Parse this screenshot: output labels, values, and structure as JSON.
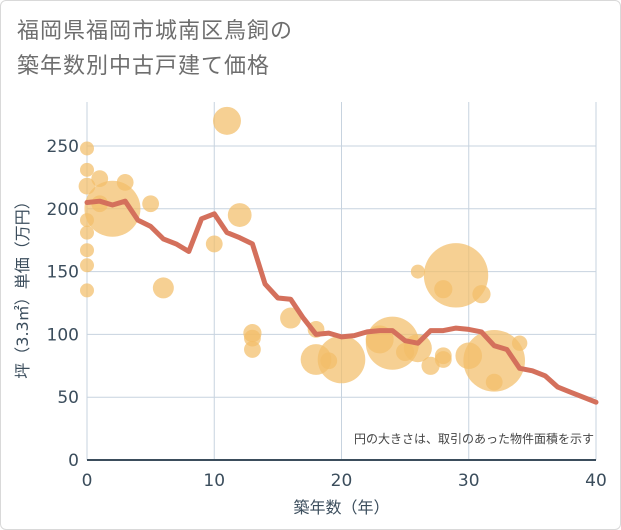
{
  "title_line1": "福岡県福岡市城南区鳥飼の",
  "title_line2": "築年数別中古戸建て価格",
  "chart_data": {
    "type": "scatter",
    "title": "福岡県福岡市城南区鳥飼の築年数別中古戸建て価格",
    "xlabel": "築年数（年）",
    "ylabel": "坪（3.3㎡）単価（万円）",
    "xlim": [
      0,
      40
    ],
    "ylim": [
      0,
      285
    ],
    "xticks": [
      0,
      10,
      20,
      30,
      40
    ],
    "yticks": [
      0,
      50,
      100,
      150,
      200,
      250
    ],
    "grid": true,
    "note": "円の大きさは、取引のあった物件面積を示す",
    "colors": {
      "bubble": "#f3be69",
      "line": "#d4705c",
      "grid": "#c7d3df"
    },
    "bubbles": [
      {
        "x": 0,
        "y": 248,
        "s": 1
      },
      {
        "x": 0,
        "y": 231,
        "s": 1
      },
      {
        "x": 0,
        "y": 218,
        "s": 1.2
      },
      {
        "x": 0,
        "y": 191,
        "s": 1
      },
      {
        "x": 0,
        "y": 181,
        "s": 1
      },
      {
        "x": 0,
        "y": 167,
        "s": 1
      },
      {
        "x": 0,
        "y": 155,
        "s": 1
      },
      {
        "x": 0,
        "y": 135,
        "s": 1
      },
      {
        "x": 1,
        "y": 224,
        "s": 1.2
      },
      {
        "x": 1,
        "y": 204,
        "s": 1.2
      },
      {
        "x": 2,
        "y": 200,
        "s": 4
      },
      {
        "x": 3,
        "y": 221,
        "s": 1.2
      },
      {
        "x": 5,
        "y": 204,
        "s": 1.2
      },
      {
        "x": 6,
        "y": 137,
        "s": 1.5
      },
      {
        "x": 10,
        "y": 172,
        "s": 1.2
      },
      {
        "x": 11,
        "y": 270,
        "s": 2
      },
      {
        "x": 12,
        "y": 195,
        "s": 1.7
      },
      {
        "x": 13,
        "y": 101,
        "s": 1.3
      },
      {
        "x": 13,
        "y": 97,
        "s": 1.2
      },
      {
        "x": 13,
        "y": 88,
        "s": 1.2
      },
      {
        "x": 16,
        "y": 113,
        "s": 1.5
      },
      {
        "x": 18,
        "y": 104,
        "s": 1.2
      },
      {
        "x": 18,
        "y": 80,
        "s": 2.2
      },
      {
        "x": 19,
        "y": 79,
        "s": 1.2
      },
      {
        "x": 20,
        "y": 80,
        "s": 3.4
      },
      {
        "x": 23,
        "y": 96,
        "s": 2
      },
      {
        "x": 24,
        "y": 93,
        "s": 3.8
      },
      {
        "x": 25,
        "y": 86,
        "s": 1.3
      },
      {
        "x": 26,
        "y": 150,
        "s": 1
      },
      {
        "x": 26,
        "y": 89,
        "s": 2
      },
      {
        "x": 27,
        "y": 75,
        "s": 1.3
      },
      {
        "x": 28,
        "y": 136,
        "s": 1.3
      },
      {
        "x": 28,
        "y": 83,
        "s": 1.2
      },
      {
        "x": 28,
        "y": 80,
        "s": 1.2
      },
      {
        "x": 29,
        "y": 147,
        "s": 4.6
      },
      {
        "x": 30,
        "y": 83,
        "s": 1.9
      },
      {
        "x": 31,
        "y": 132,
        "s": 1.3
      },
      {
        "x": 32,
        "y": 79,
        "s": 4.4
      },
      {
        "x": 32,
        "y": 62,
        "s": 1.2
      },
      {
        "x": 34,
        "y": 93,
        "s": 1.1
      }
    ],
    "line": {
      "x": [
        0,
        1,
        2,
        3,
        4,
        5,
        6,
        7,
        8,
        9,
        10,
        11,
        12,
        13,
        14,
        15,
        16,
        17,
        18,
        19,
        20,
        21,
        22,
        23,
        24,
        25,
        26,
        27,
        28,
        29,
        30,
        31,
        32,
        33,
        34,
        35,
        36,
        37,
        38,
        39,
        40
      ],
      "y": [
        205,
        206,
        203,
        206,
        191,
        186,
        176,
        172,
        166,
        192,
        196,
        181,
        177,
        172,
        140,
        129,
        128,
        113,
        100,
        101,
        98,
        99,
        102,
        103,
        103,
        95,
        93,
        103,
        103,
        105,
        104,
        102,
        91,
        88,
        73,
        71,
        67,
        58,
        54,
        50,
        46
      ]
    }
  }
}
